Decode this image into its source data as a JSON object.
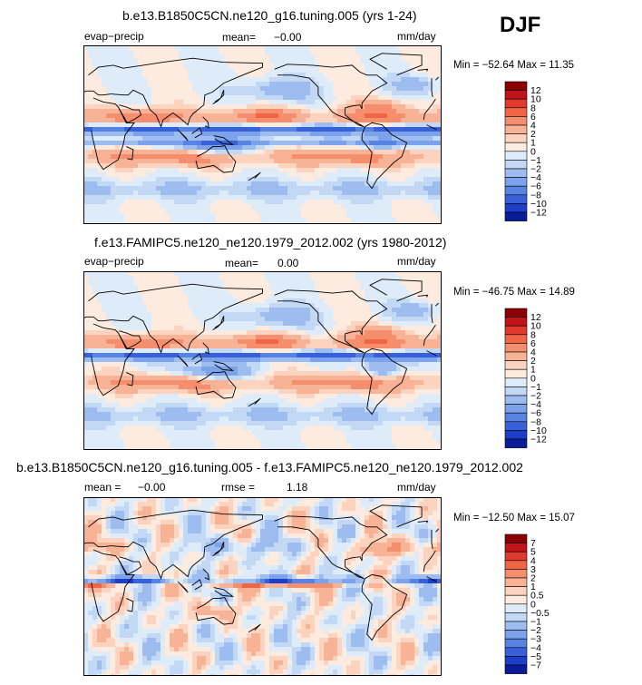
{
  "season": "DJF",
  "panels": [
    {
      "title": "b.e13.B1850C5CN.ne120_g16.tuning.005 (yrs 1-24)",
      "variable": "evap−precip",
      "mean_label": "mean=",
      "mean_value": "−0.00",
      "rmse_label": "",
      "rmse_value": "",
      "units": "mm/day",
      "minmax": "Min = −52.64  Max =  11.35"
    },
    {
      "title": "f.e13.FAMIPC5.ne120_ne120.1979_2012.002 (yrs 1980-2012)",
      "variable": "evap−precip",
      "mean_label": "mean=",
      "mean_value": "0.00",
      "rmse_label": "",
      "rmse_value": "",
      "units": "mm/day",
      "minmax": "Min = −46.75  Max =  14.89"
    },
    {
      "title": "b.e13.B1850C5CN.ne120_g16.tuning.005 - f.e13.FAMIPC5.ne120_ne120.1979_2012.002",
      "variable": "",
      "mean_label": "mean =",
      "mean_value": "−0.00",
      "rmse_label": "rmse =",
      "rmse_value": "1.18",
      "units": "mm/day",
      "minmax": "Min = −12.50  Max =  15.07"
    }
  ],
  "colorbars": [
    {
      "levels": [
        "12",
        "10",
        "8",
        "6",
        "4",
        "2",
        "1",
        "0",
        "−1",
        "−2",
        "−4",
        "−6",
        "−8",
        "−10",
        "−12"
      ],
      "colors": [
        "#8b0000",
        "#c0141a",
        "#e0392d",
        "#ef6545",
        "#f58e6c",
        "#f8b296",
        "#fbd3bf",
        "#fdebdf",
        "#deecfa",
        "#c2d8f5",
        "#9dbdf0",
        "#7ba2ea",
        "#5783e2",
        "#3760d9",
        "#1c3ec8",
        "#0a1c9a"
      ]
    },
    {
      "levels": [
        "12",
        "10",
        "8",
        "6",
        "4",
        "2",
        "1",
        "0",
        "−1",
        "−2",
        "−4",
        "−6",
        "−8",
        "−10",
        "−12"
      ],
      "colors": [
        "#8b0000",
        "#c0141a",
        "#e0392d",
        "#ef6545",
        "#f58e6c",
        "#f8b296",
        "#fbd3bf",
        "#fdebdf",
        "#deecfa",
        "#c2d8f5",
        "#9dbdf0",
        "#7ba2ea",
        "#5783e2",
        "#3760d9",
        "#1c3ec8",
        "#0a1c9a"
      ]
    },
    {
      "levels": [
        "7",
        "5",
        "4",
        "3",
        "2",
        "1",
        "0.5",
        "0",
        "−0.5",
        "−1",
        "−2",
        "−3",
        "−4",
        "−5",
        "−7"
      ],
      "colors": [
        "#8b0000",
        "#c0141a",
        "#e0392d",
        "#ef6545",
        "#f58e6c",
        "#f8b296",
        "#fbd3bf",
        "#fdebdf",
        "#deecfa",
        "#c2d8f5",
        "#9dbdf0",
        "#7ba2ea",
        "#5783e2",
        "#3760d9",
        "#1c3ec8",
        "#0a1c9a"
      ]
    }
  ],
  "chart_data": [
    {
      "type": "heatmap",
      "title": "b.e13.B1850C5CN.ne120_g16.tuning.005 (yrs 1-24)",
      "variable": "evap−precip",
      "units": "mm/day",
      "mean": -0.0,
      "min": -52.64,
      "max": 11.35,
      "contour_levels": [
        -12,
        -10,
        -8,
        -6,
        -4,
        -2,
        -1,
        0,
        1,
        2,
        4,
        6,
        8,
        10,
        12
      ]
    },
    {
      "type": "heatmap",
      "title": "f.e13.FAMIPC5.ne120_ne120.1979_2012.002 (yrs 1980-2012)",
      "variable": "evap−precip",
      "units": "mm/day",
      "mean": 0.0,
      "min": -46.75,
      "max": 14.89,
      "contour_levels": [
        -12,
        -10,
        -8,
        -6,
        -4,
        -2,
        -1,
        0,
        1,
        2,
        4,
        6,
        8,
        10,
        12
      ]
    },
    {
      "type": "heatmap",
      "title": "b.e13.B1850C5CN.ne120_g16.tuning.005 - f.e13.FAMIPC5.ne120_ne120.1979_2012.002",
      "units": "mm/day",
      "mean": -0.0,
      "rmse": 1.18,
      "min": -12.5,
      "max": 15.07,
      "contour_levels": [
        -7,
        -5,
        -4,
        -3,
        -2,
        -1,
        -0.5,
        0,
        0.5,
        1,
        2,
        3,
        4,
        5,
        7
      ]
    }
  ]
}
